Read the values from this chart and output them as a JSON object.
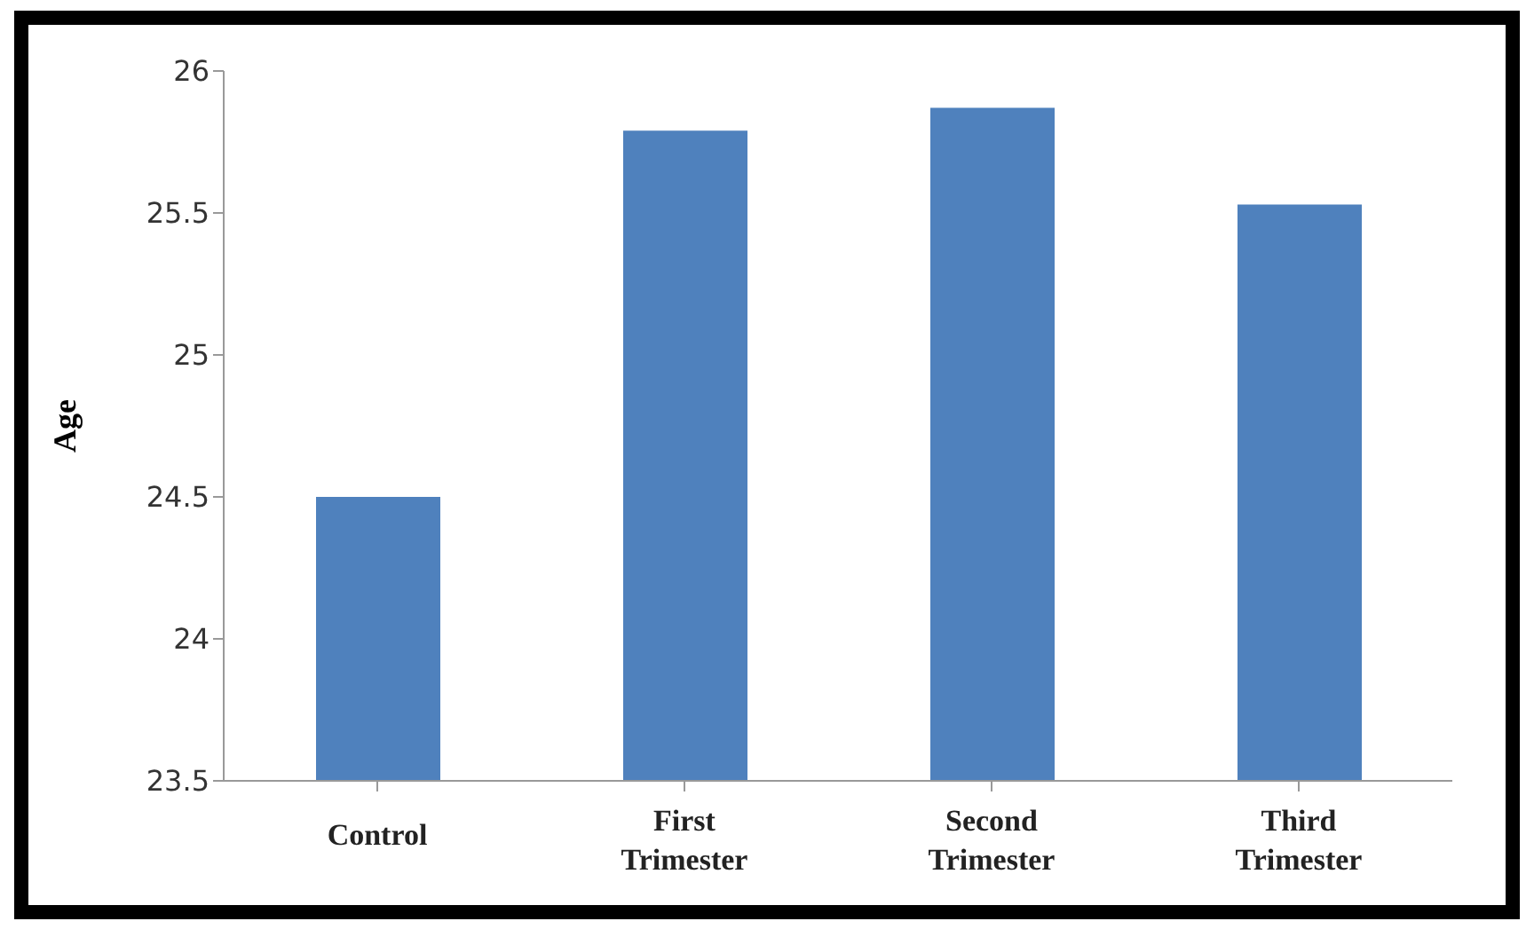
{
  "chart_data": {
    "type": "bar",
    "ylabel": "Age",
    "categories": [
      "Control",
      "First Trimester",
      "Second Trimester",
      "Third Trimester"
    ],
    "values": [
      24.5,
      25.79,
      25.87,
      25.53
    ],
    "color": "#4f81bd",
    "ylim": [
      23.5,
      26
    ],
    "yticks": [
      23.5,
      24,
      24.5,
      25,
      25.5,
      26
    ],
    "grid": false,
    "legend": false
  }
}
